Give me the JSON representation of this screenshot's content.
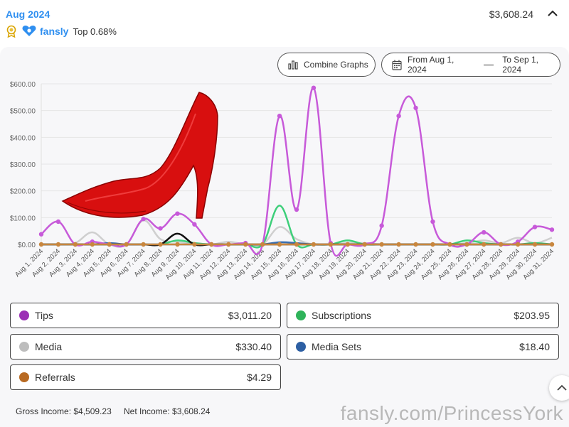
{
  "header": {
    "month": "Aug 2024",
    "total": "$3,608.24",
    "brand": "fansly",
    "rank": "Top 0.68%"
  },
  "controls": {
    "combine_label": "Combine Graphs",
    "date_from": "From Aug 1, 2024",
    "date_to": "To Sep 1, 2024"
  },
  "chart_data": {
    "type": "line",
    "ylim": [
      0,
      600
    ],
    "y_ticks": [
      "$0.00",
      "$100.00",
      "$200.00",
      "$300.00",
      "$400.00",
      "$500.00",
      "$600.00"
    ],
    "categories": [
      "Aug 1, 2024",
      "Aug 2, 2024",
      "Aug 3, 2024",
      "Aug 4, 2024",
      "Aug 5, 2024",
      "Aug 6, 2024",
      "Aug 7, 2024",
      "Aug 8, 2024",
      "Aug 9, 2024",
      "Aug 10, 2024",
      "Aug 11, 2024",
      "Aug 12, 2024",
      "Aug 13, 2024",
      "Aug 14, 2024",
      "Aug 15, 2024",
      "Aug 16, 2024",
      "Aug 17, 2024",
      "Aug 18, 2024",
      "Aug 19, 2024",
      "Aug 20, 2024",
      "Aug 21, 2024",
      "Aug 22, 2024",
      "Aug 23, 2024",
      "Aug 24, 2024",
      "Aug 25, 2024",
      "Aug 26, 2024",
      "Aug 27, 2024",
      "Aug 28, 2024",
      "Aug 29, 2024",
      "Aug 30, 2024",
      "Aug 31, 2024"
    ],
    "series": [
      {
        "name": "Media",
        "color": "#cfcfcf",
        "values": [
          0,
          0,
          5,
          45,
          0,
          0,
          90,
          20,
          10,
          5,
          0,
          10,
          0,
          0,
          65,
          20,
          0,
          0,
          5,
          5,
          0,
          0,
          0,
          0,
          0,
          5,
          15,
          5,
          25,
          5,
          25
        ]
      },
      {
        "name": "Subscriptions",
        "color": "#3ecf7a",
        "values": [
          0,
          0,
          0,
          0,
          0,
          0,
          0,
          0,
          15,
          5,
          0,
          0,
          0,
          0,
          145,
          0,
          0,
          0,
          15,
          0,
          0,
          0,
          0,
          0,
          0,
          15,
          5,
          0,
          0,
          5,
          0
        ]
      },
      {
        "name": "Media Sets",
        "color": "#3a6fb0",
        "values": [
          0,
          0,
          0,
          0,
          5,
          0,
          0,
          0,
          0,
          0,
          0,
          0,
          0,
          0,
          8,
          5,
          0,
          0,
          0,
          0,
          0,
          0,
          0,
          0,
          0,
          0,
          0,
          0,
          0,
          0,
          0
        ]
      },
      {
        "name": "",
        "color": "#111111",
        "values": [
          0,
          0,
          0,
          0,
          0,
          0,
          0,
          0,
          40,
          0,
          0,
          0,
          0,
          0,
          0,
          0,
          0,
          0,
          0,
          0,
          0,
          0,
          0,
          0,
          0,
          0,
          0,
          0,
          0,
          0,
          0
        ]
      },
      {
        "name": "Tips",
        "color": "#c75ad9",
        "values": [
          38,
          85,
          0,
          10,
          0,
          0,
          95,
          60,
          115,
          75,
          0,
          0,
          5,
          0,
          480,
          130,
          585,
          5,
          0,
          0,
          70,
          480,
          510,
          85,
          0,
          0,
          45,
          0,
          10,
          65,
          55
        ]
      },
      {
        "name": "Referrals",
        "color": "#c8863e",
        "values": [
          0,
          0,
          0,
          0,
          0,
          0,
          0,
          0,
          0,
          0,
          0,
          0,
          0,
          0,
          0,
          0,
          0,
          0,
          0,
          0,
          0,
          0,
          0,
          0,
          0,
          0,
          0,
          0,
          0,
          0,
          0
        ]
      }
    ]
  },
  "legend": [
    {
      "name": "Tips",
      "value": "$3,011.20",
      "color": "#9b2fb5"
    },
    {
      "name": "Subscriptions",
      "value": "$203.95",
      "color": "#2fb35a"
    },
    {
      "name": "Media",
      "value": "$330.40",
      "color": "#bdbdbd"
    },
    {
      "name": "Media Sets",
      "value": "$18.40",
      "color": "#2d5fa3"
    },
    {
      "name": "Referrals",
      "value": "$4.29",
      "color": "#b86a22"
    }
  ],
  "footer": {
    "gross": "Gross Income: $4,509.23",
    "net": "Net Income: $3,608.24",
    "watermark": "fansly.com/PrincessYork"
  },
  "icons": {
    "award": "award-icon",
    "brand": "fansly-logo-icon",
    "combine": "bar-chart-icon",
    "calendar": "calendar-icon",
    "chevron": "chevron-up-icon",
    "scroll": "chevron-up-icon"
  }
}
